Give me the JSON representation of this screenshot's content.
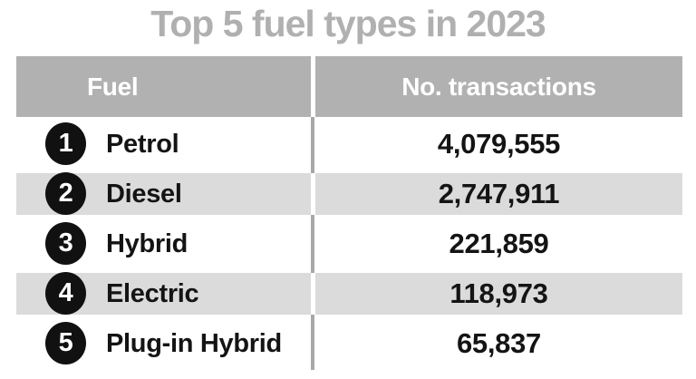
{
  "title": "Top 5 fuel types in 2023",
  "table": {
    "header": {
      "fuel": "Fuel",
      "transactions": "No. transactions"
    },
    "rows": [
      {
        "rank": "1",
        "fuel": "Petrol",
        "transactions": "4,079,555"
      },
      {
        "rank": "2",
        "fuel": "Diesel",
        "transactions": "2,747,911"
      },
      {
        "rank": "3",
        "fuel": "Hybrid",
        "transactions": "221,859"
      },
      {
        "rank": "4",
        "fuel": "Electric",
        "transactions": "118,973"
      },
      {
        "rank": "5",
        "fuel": "Plug-in Hybrid",
        "transactions": "65,837"
      }
    ]
  },
  "colors": {
    "title_gray": "#b0b0b0",
    "header_bg": "#b1b1b1",
    "header_text": "#ffffff",
    "stripe_bg": "#dbdbdb",
    "divider_gray": "#a8a8a8",
    "text_black": "#141414",
    "badge_bg": "#111111"
  },
  "chart_data": {
    "type": "table",
    "title": "Top 5 fuel types in 2023",
    "columns": [
      "Fuel",
      "No. transactions"
    ],
    "rows": [
      [
        "Petrol",
        4079555
      ],
      [
        "Diesel",
        2747911
      ],
      [
        "Hybrid",
        221859
      ],
      [
        "Electric",
        118973
      ],
      [
        "Plug-in Hybrid",
        65837
      ]
    ]
  }
}
